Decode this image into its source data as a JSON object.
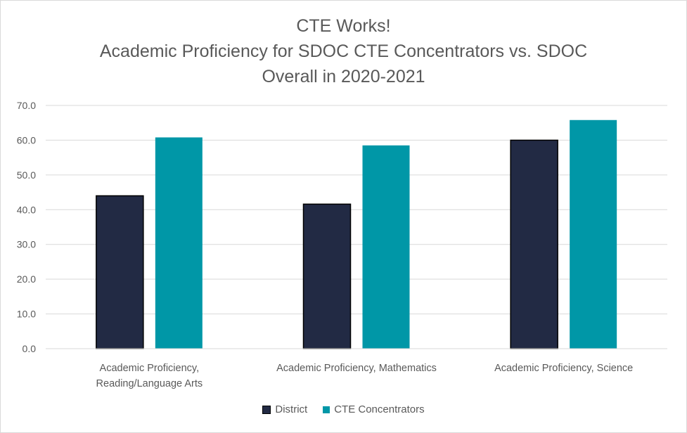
{
  "chart_data": {
    "type": "bar",
    "title": [
      "CTE Works!",
      "Academic Proficiency for SDOC CTE Concentrators vs. SDOC",
      "Overall in 2020-2021"
    ],
    "categories": [
      [
        "Academic Proficiency,",
        "Reading/Language Arts"
      ],
      [
        "Academic Proficiency, Mathematics"
      ],
      [
        "Academic Proficiency, Science"
      ]
    ],
    "series": [
      {
        "name": "District",
        "color": "#222a44",
        "values": [
          44.0,
          41.6,
          60.0
        ]
      },
      {
        "name": "CTE Concentrators",
        "color": "#0097a7",
        "values": [
          60.8,
          58.5,
          65.8
        ]
      }
    ],
    "ylim": [
      0,
      70
    ],
    "yticks": [
      "0.0",
      "10.0",
      "20.0",
      "30.0",
      "40.0",
      "50.0",
      "60.0",
      "70.0"
    ],
    "xlabel": "",
    "ylabel": "",
    "grid": true,
    "legend_position": "bottom"
  }
}
